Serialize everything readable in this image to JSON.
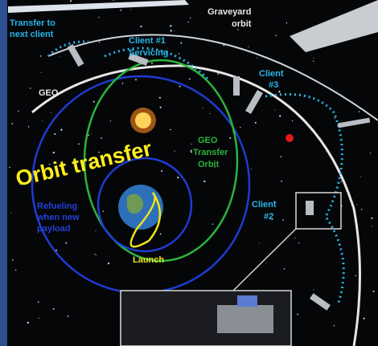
{
  "labels": [
    {
      "lines": [
        "Transfer to",
        "next client"
      ]
    },
    {
      "lines": [
        "Client #1",
        "Servicing"
      ]
    },
    {
      "lines": [
        "Graveyard",
        "orbit"
      ]
    },
    {
      "lines": [
        "GEO"
      ]
    },
    {
      "lines": [
        "Client",
        "#3"
      ]
    },
    {
      "lines": [
        "Orbit transfer"
      ]
    },
    {
      "lines": [
        "GEO",
        "Transfer",
        "Orbit"
      ]
    },
    {
      "lines": [
        "Refueling",
        "when new",
        "payload"
      ]
    },
    {
      "lines": [
        "Client",
        "#2"
      ]
    },
    {
      "lines": [
        "Launch"
      ]
    }
  ]
}
